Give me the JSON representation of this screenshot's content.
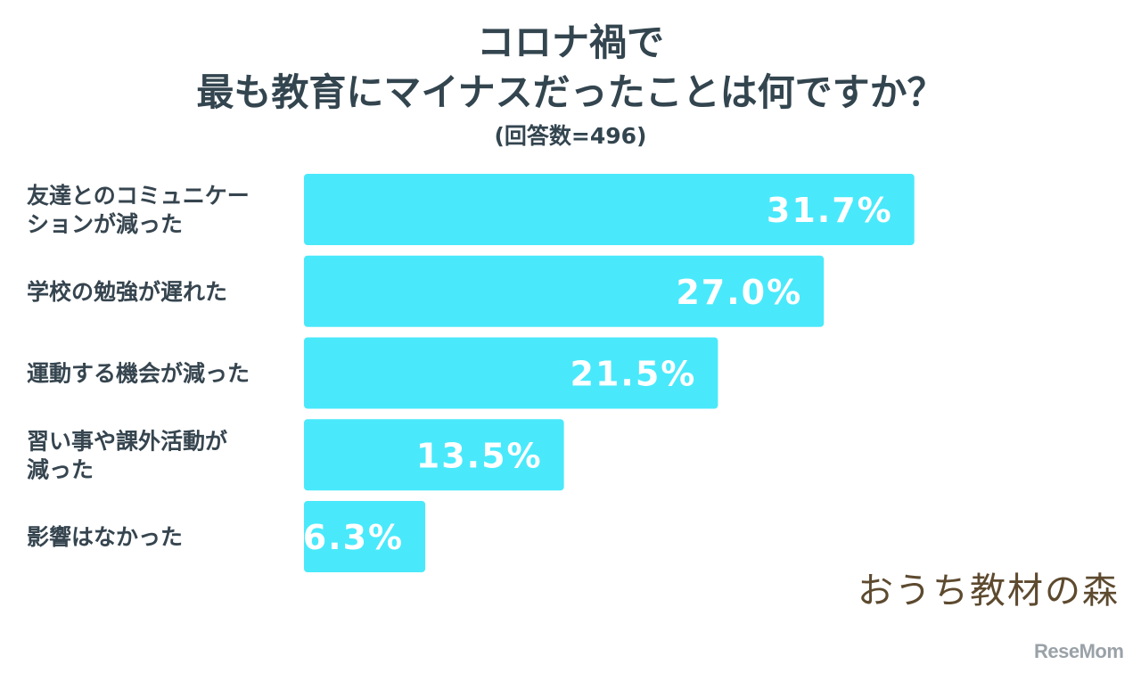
{
  "title_line1": "コロナ禍で",
  "title_line2": "最も教育にマイナスだったことは何ですか？",
  "subtitle": "(回答数=496)",
  "logo_text": "おうち教材の森",
  "credit": "ReseMom",
  "colors": {
    "bar": "#49e9fb",
    "label": "#36454f",
    "value_text": "#ffffff",
    "title": "#33454f"
  },
  "chart_data": {
    "type": "bar",
    "orientation": "horizontal",
    "categories": [
      [
        "友達とのコミュニケー",
        "ションが減った"
      ],
      [
        "学校の勉強が遅れた"
      ],
      [
        "運動する機会が減った"
      ],
      [
        "習い事や課外活動が",
        "減った"
      ],
      [
        "影響はなかった"
      ]
    ],
    "values": [
      31.7,
      27.0,
      21.5,
      13.5,
      6.3
    ],
    "value_labels": [
      "31.7%",
      "27.0%",
      "21.5%",
      "13.5%",
      "6.3%"
    ],
    "title": "コロナ禍で 最も教育にマイナスだったことは何ですか？",
    "unit": "%",
    "grid": false,
    "legend": false
  }
}
